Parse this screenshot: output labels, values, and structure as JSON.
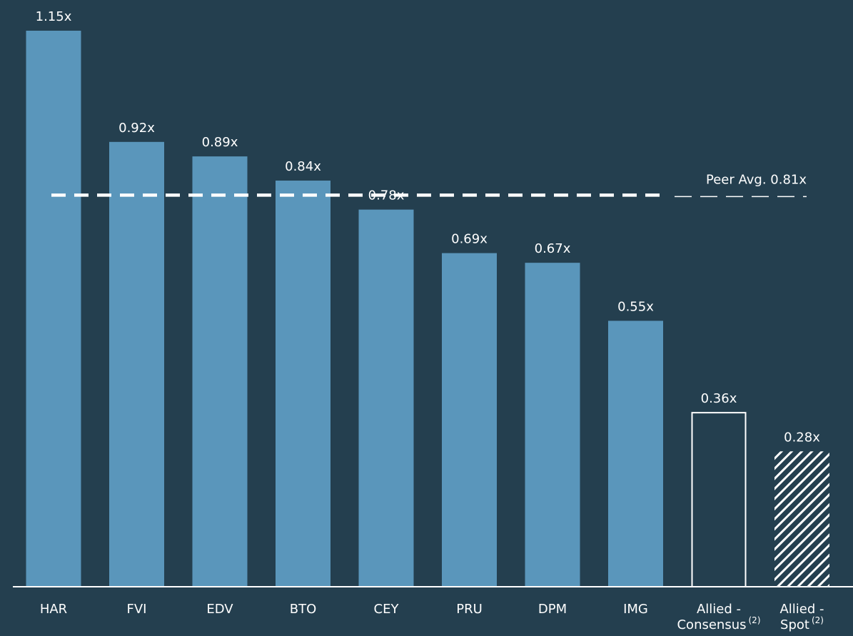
{
  "chart_data": {
    "type": "bar",
    "categories": [
      "HAR",
      "FVI",
      "EDV",
      "BTO",
      "CEY",
      "PRU",
      "DPM",
      "IMG",
      "Allied - Consensus",
      "Allied - Spot"
    ],
    "category_lines": [
      [
        "HAR"
      ],
      [
        "FVI"
      ],
      [
        "EDV"
      ],
      [
        "BTO"
      ],
      [
        "CEY"
      ],
      [
        "PRU"
      ],
      [
        "DPM"
      ],
      [
        "IMG"
      ],
      [
        "Allied -",
        "Consensus"
      ],
      [
        "Allied -",
        "Spot"
      ]
    ],
    "category_superscripts": [
      "",
      "",
      "",
      "",
      "",
      "",
      "",
      "",
      "(2)",
      "(2)"
    ],
    "values": [
      1.15,
      0.92,
      0.89,
      0.84,
      0.78,
      0.69,
      0.67,
      0.55,
      0.36,
      0.28
    ],
    "value_labels": [
      "1.15x",
      "0.92x",
      "0.89x",
      "0.84x",
      "0.78x",
      "0.69x",
      "0.67x",
      "0.55x",
      "0.36x",
      "0.28x"
    ],
    "bar_styles": [
      "solid",
      "solid",
      "solid",
      "solid",
      "solid",
      "solid",
      "solid",
      "solid",
      "outline",
      "hatched"
    ],
    "reference_line": {
      "value": 0.81,
      "label": "Peer Avg. 0.81x",
      "style": "dashed"
    },
    "ylim": [
      0,
      1.15
    ],
    "title": "",
    "xlabel": "",
    "ylabel": "",
    "grid": false,
    "colors": {
      "background": "#243f4f",
      "bar": "#5a96bb",
      "text": "#ffffff",
      "axis": "#ffffff",
      "reference_line": "#ffffff"
    }
  }
}
